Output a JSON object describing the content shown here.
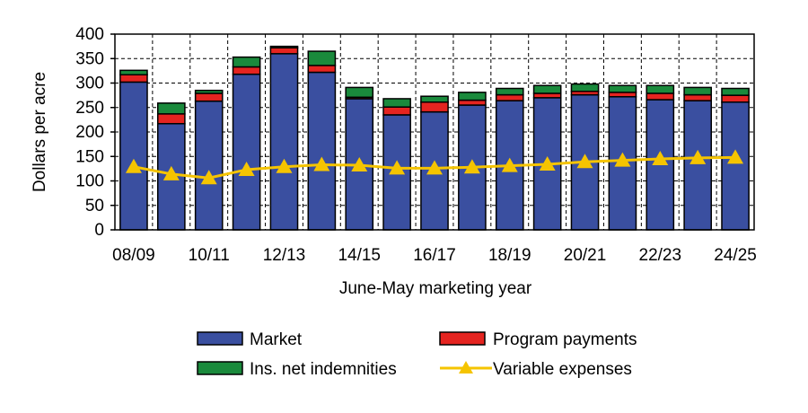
{
  "chart_data": {
    "type": "bar",
    "stacked": true,
    "categories": [
      "08/09",
      "09/10",
      "10/11",
      "11/12",
      "12/13",
      "13/14",
      "14/15",
      "15/16",
      "16/17",
      "17/18",
      "18/19",
      "19/20",
      "20/21",
      "21/22",
      "22/23",
      "23/24",
      "24/25"
    ],
    "x_tick_labels": [
      "08/09",
      "10/11",
      "12/13",
      "14/15",
      "16/17",
      "18/19",
      "20/21",
      "22/23",
      "24/25"
    ],
    "xlabel": "June-May marketing year",
    "ylabel": "Dollars per acre",
    "ylim": [
      0,
      400
    ],
    "yticks": [
      0,
      50,
      100,
      150,
      200,
      250,
      300,
      350,
      400
    ],
    "grid": true,
    "legend_position": "bottom",
    "series": [
      {
        "name": "Market",
        "kind": "bar",
        "color": "#3a4fa0",
        "values": [
          302,
          217,
          263,
          318,
          360,
          322,
          268,
          235,
          241,
          255,
          264,
          270,
          276,
          272,
          266,
          264,
          261
        ]
      },
      {
        "name": "Program payments",
        "kind": "bar",
        "color": "#e52420",
        "values": [
          15,
          20,
          16,
          15,
          12,
          14,
          3,
          16,
          20,
          10,
          12,
          9,
          7,
          9,
          13,
          12,
          14
        ]
      },
      {
        "name": "Ins. net indemnities",
        "kind": "bar",
        "color": "#1a8a3c",
        "values": [
          9,
          22,
          6,
          20,
          3,
          29,
          20,
          17,
          12,
          16,
          13,
          16,
          15,
          14,
          16,
          15,
          14
        ]
      },
      {
        "name": "Variable expenses",
        "kind": "line",
        "color": "#f5c400",
        "values": [
          129,
          114,
          106,
          123,
          129,
          133,
          132,
          126,
          126,
          128,
          131,
          134,
          139,
          142,
          145,
          147,
          148
        ]
      }
    ]
  }
}
